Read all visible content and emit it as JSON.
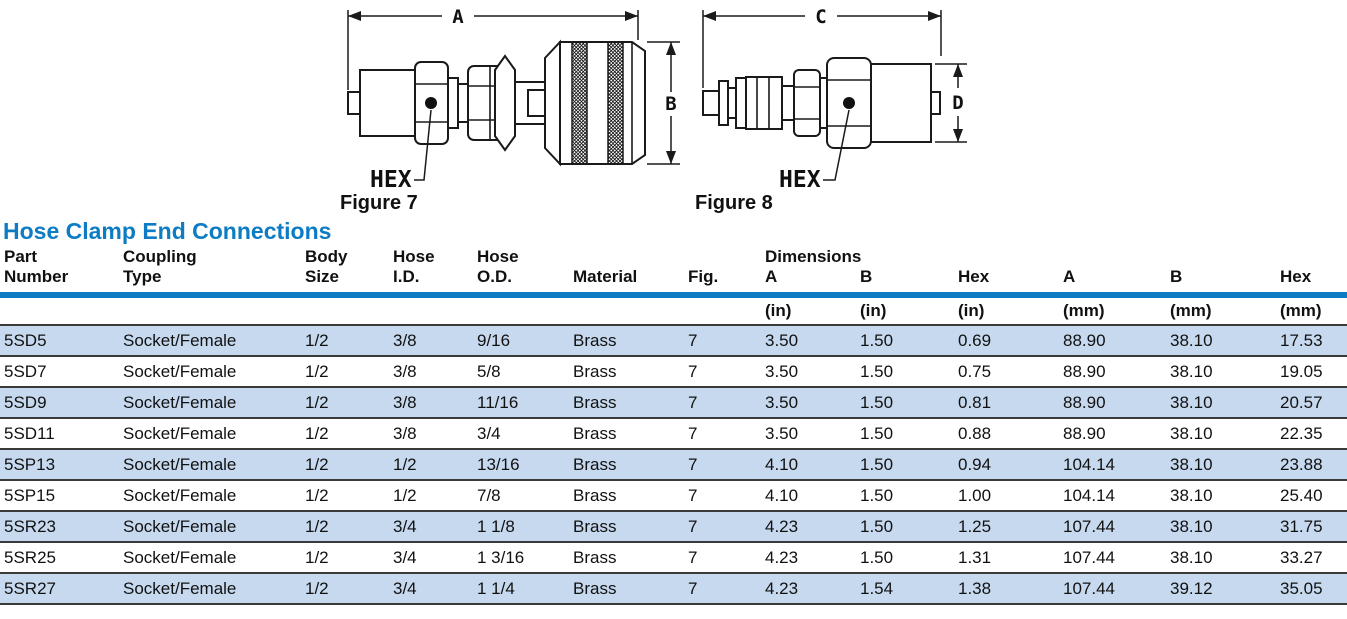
{
  "page": {
    "title": "Hose Clamp End Connections"
  },
  "colors": {
    "accent_blue": "#0d7cc4",
    "row_stripe": "#c6d9ef"
  },
  "figures": [
    {
      "caption": "Figure 7",
      "dim_length": "A",
      "dim_diameter": "B",
      "hex_label": "HEX"
    },
    {
      "caption": "Figure 8",
      "dim_length": "C",
      "dim_diameter": "D",
      "hex_label": "HEX"
    }
  ],
  "table": {
    "headers": {
      "part_number": [
        "Part",
        "Number"
      ],
      "coupling_type": [
        "Coupling",
        "Type"
      ],
      "body_size": [
        "Body",
        "Size"
      ],
      "hose_id": [
        "Hose",
        "I.D."
      ],
      "hose_od": [
        "Hose",
        "O.D."
      ],
      "material": "Material",
      "fig": "Fig.",
      "dimensions_group": "Dimensions",
      "dim_cols": [
        "A",
        "B",
        "Hex",
        "A",
        "B",
        "Hex"
      ],
      "units": [
        "(in)",
        "(in)",
        "(in)",
        "(mm)",
        "(mm)",
        "(mm)"
      ]
    },
    "rows": [
      [
        "5SD5",
        "Socket/Female",
        "1/2",
        "3/8",
        "9/16",
        "Brass",
        "7",
        "3.50",
        "1.50",
        "0.69",
        "88.90",
        "38.10",
        "17.53"
      ],
      [
        "5SD7",
        "Socket/Female",
        "1/2",
        "3/8",
        "5/8",
        "Brass",
        "7",
        "3.50",
        "1.50",
        "0.75",
        "88.90",
        "38.10",
        "19.05"
      ],
      [
        "5SD9",
        "Socket/Female",
        "1/2",
        "3/8",
        "11/16",
        "Brass",
        "7",
        "3.50",
        "1.50",
        "0.81",
        "88.90",
        "38.10",
        "20.57"
      ],
      [
        "5SD11",
        "Socket/Female",
        "1/2",
        "3/8",
        "3/4",
        "Brass",
        "7",
        "3.50",
        "1.50",
        "0.88",
        "88.90",
        "38.10",
        "22.35"
      ],
      [
        "5SP13",
        "Socket/Female",
        "1/2",
        "1/2",
        "13/16",
        "Brass",
        "7",
        "4.10",
        "1.50",
        "0.94",
        "104.14",
        "38.10",
        "23.88"
      ],
      [
        "5SP15",
        "Socket/Female",
        "1/2",
        "1/2",
        "7/8",
        "Brass",
        "7",
        "4.10",
        "1.50",
        "1.00",
        "104.14",
        "38.10",
        "25.40"
      ],
      [
        "5SR23",
        "Socket/Female",
        "1/2",
        "3/4",
        "1 1/8",
        "Brass",
        "7",
        "4.23",
        "1.50",
        "1.25",
        "107.44",
        "38.10",
        "31.75"
      ],
      [
        "5SR25",
        "Socket/Female",
        "1/2",
        "3/4",
        "1 3/16",
        "Brass",
        "7",
        "4.23",
        "1.50",
        "1.31",
        "107.44",
        "38.10",
        "33.27"
      ],
      [
        "5SR27",
        "Socket/Female",
        "1/2",
        "3/4",
        "1 1/4",
        "Brass",
        "7",
        "4.23",
        "1.54",
        "1.38",
        "107.44",
        "39.12",
        "35.05"
      ]
    ]
  }
}
